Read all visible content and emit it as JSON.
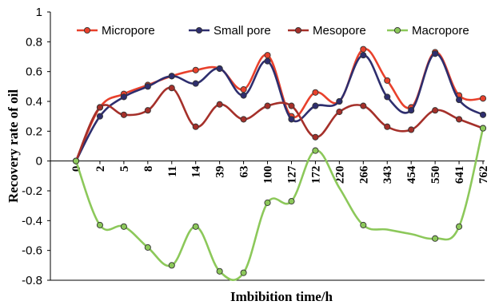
{
  "chart_data": {
    "type": "line",
    "title": "",
    "xlabel": "Imbibition time/h",
    "ylabel": "Recovery rate of oil",
    "categories": [
      "0",
      "2",
      "5",
      "8",
      "11",
      "14",
      "39",
      "63",
      "100",
      "127",
      "172",
      "220",
      "266",
      "343",
      "454",
      "550",
      "641",
      "762"
    ],
    "ylim": [
      -0.8,
      1
    ],
    "yticks": [
      -0.8,
      -0.6,
      -0.4,
      -0.2,
      0,
      0.2,
      0.4,
      0.6,
      0.8,
      1
    ],
    "ytick_labels": [
      "-0.8",
      "-0.6",
      "-0.4",
      "-0.2",
      "0",
      "0.2",
      "0.4",
      "0.6",
      "0.8",
      "1"
    ],
    "grid": false,
    "legend_position": "top",
    "series": [
      {
        "name": "Micropore",
        "color": "#e8412c",
        "marker_fill": "#e8412c",
        "values": [
          0,
          0.36,
          0.45,
          0.51,
          0.57,
          0.61,
          0.62,
          0.48,
          0.71,
          0.3,
          0.46,
          0.4,
          0.75,
          0.54,
          0.36,
          0.73,
          0.44,
          0.42
        ]
      },
      {
        "name": "Small pore",
        "color": "#2e2e6e",
        "marker_fill": "#2e2e6e",
        "values": [
          0,
          0.3,
          0.43,
          0.5,
          0.57,
          0.52,
          0.62,
          0.44,
          0.67,
          0.28,
          0.37,
          0.4,
          0.71,
          0.43,
          0.34,
          0.72,
          0.41,
          0.31
        ]
      },
      {
        "name": "Mesopore",
        "color": "#a5302a",
        "marker_fill": "#a5302a",
        "values": [
          0,
          0.36,
          0.31,
          0.34,
          0.49,
          0.23,
          0.38,
          0.28,
          0.37,
          0.37,
          0.16,
          0.33,
          0.37,
          0.23,
          0.21,
          0.34,
          0.28,
          0.22
        ]
      },
      {
        "name": "Macropore",
        "color": "#8cc85a",
        "marker_fill": "#8cc85a",
        "values": [
          0,
          -0.43,
          -0.44,
          -0.58,
          -0.7,
          -0.44,
          -0.74,
          -0.75,
          -0.28,
          -0.27,
          0.07,
          null,
          -0.43,
          null,
          null,
          -0.52,
          -0.44,
          0.22
        ]
      }
    ]
  }
}
